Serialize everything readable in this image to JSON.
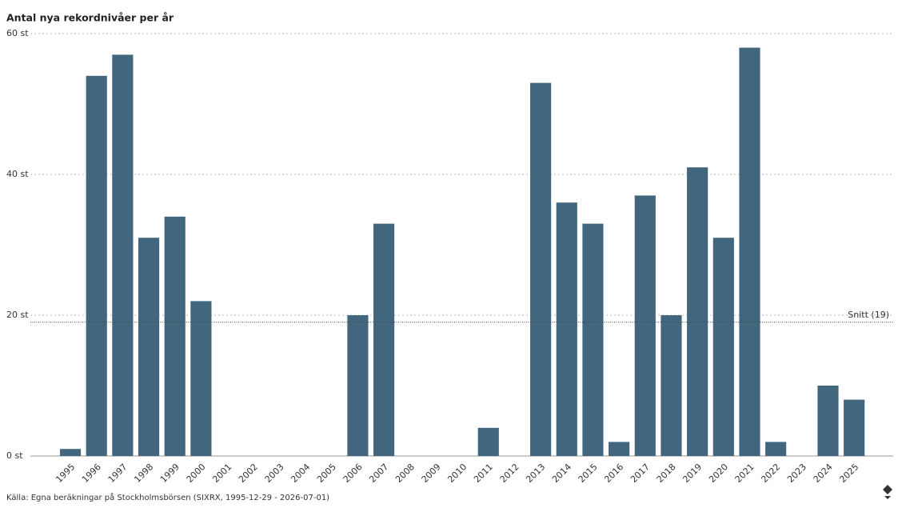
{
  "chart_data": {
    "type": "bar",
    "title": "Antal nya rekordnivåer per år",
    "source": "Källa: Egna beräkningar på Stockholmsbörsen (SIXRX, 1995-12-29 - 2026-07-01)",
    "categories": [
      "1995",
      "1996",
      "1997",
      "1998",
      "1999",
      "2000",
      "2001",
      "2002",
      "2003",
      "2004",
      "2005",
      "2006",
      "2007",
      "2008",
      "2009",
      "2010",
      "2011",
      "2012",
      "2013",
      "2014",
      "2015",
      "2016",
      "2017",
      "2018",
      "2019",
      "2020",
      "2021",
      "2022",
      "2023",
      "2024",
      "2025"
    ],
    "values": [
      1,
      54,
      57,
      31,
      34,
      22,
      0,
      0,
      0,
      0,
      0,
      20,
      33,
      0,
      0,
      0,
      4,
      0,
      53,
      36,
      33,
      2,
      37,
      20,
      41,
      31,
      58,
      2,
      0,
      10,
      8
    ],
    "color": "#41667e",
    "ylim": [
      0,
      60
    ],
    "yticks": [
      {
        "value": 0,
        "label": "0 st"
      },
      {
        "value": 20,
        "label": "20 st"
      },
      {
        "value": 40,
        "label": "40 st"
      },
      {
        "value": 60,
        "label": "60 st"
      }
    ],
    "grid": true,
    "reference_line": {
      "value": 19,
      "label": "Snitt (19)"
    }
  }
}
